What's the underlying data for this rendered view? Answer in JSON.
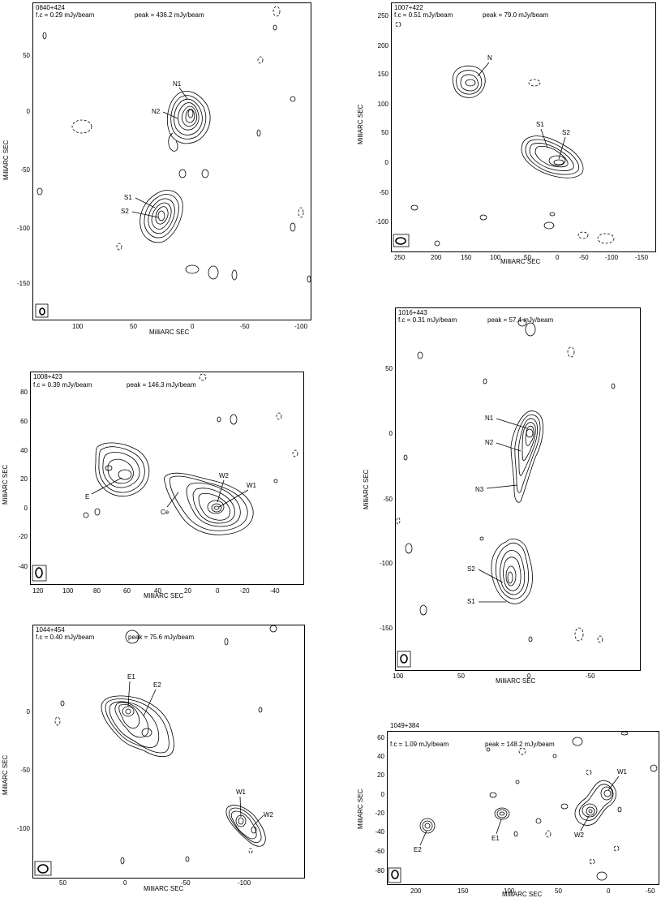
{
  "common": {
    "axis_label": "MilliARC SEC"
  },
  "panels": [
    {
      "id": "0840+424",
      "source": "0840+424",
      "fc": "f.c = 0.29 mJy/beam",
      "peak": "peak = 436.2 mJy/beam",
      "xticks": [
        "100",
        "50",
        "0",
        "-50",
        "-100"
      ],
      "yticks": [
        "50",
        "0",
        "-50",
        "-100",
        "-150"
      ],
      "components": [
        "N1",
        "N2",
        "S1",
        "S2"
      ]
    },
    {
      "id": "1007+422",
      "source": "1007+422",
      "fc": "f.c = 0.51 mJy/beam",
      "peak": "peak = 79.0 mJy/beam",
      "xticks": [
        "250",
        "200",
        "150",
        "100",
        "50",
        "0",
        "-50",
        "-100",
        "-150"
      ],
      "yticks": [
        "250",
        "200",
        "150",
        "100",
        "50",
        "0",
        "-50",
        "-100"
      ],
      "components": [
        "N",
        "S1",
        "S2"
      ]
    },
    {
      "id": "1008+423",
      "source": "1008+423",
      "fc": "f.c = 0.39 mJy/beam",
      "peak": "peak = 146.3 mJy/beam",
      "xticks": [
        "120",
        "100",
        "80",
        "60",
        "40",
        "20",
        "0",
        "-20",
        "-40"
      ],
      "yticks": [
        "80",
        "60",
        "40",
        "20",
        "0",
        "-20",
        "-40"
      ],
      "components": [
        "E",
        "Ce",
        "W2",
        "W1"
      ]
    },
    {
      "id": "1016+443",
      "source": "1016+443",
      "fc": "f.c = 0.31 mJy/beam",
      "peak": "peak = 57.4 mJy/beam",
      "xticks": [
        "100",
        "50",
        "0",
        "-50"
      ],
      "yticks": [
        "50",
        "0",
        "-50",
        "-100",
        "-150"
      ],
      "components": [
        "N1",
        "N2",
        "N3",
        "S2",
        "S1"
      ]
    },
    {
      "id": "1044+454",
      "source": "1044+454",
      "fc": "f.c = 0.40 mJy/beam",
      "peak": "peak = 75.6 mJy/beam",
      "xticks": [
        "50",
        "0",
        "-50",
        "-100"
      ],
      "yticks": [
        "0",
        "-50",
        "-100"
      ],
      "components": [
        "E1",
        "E2",
        "W1",
        "W2"
      ]
    },
    {
      "id": "1049+384",
      "source": "1049+384",
      "fc": "f.c = 1.09 mJy/beam",
      "peak": "peak = 148.2 mJy/beam",
      "xticks": [
        "200",
        "150",
        "100",
        "50",
        "0",
        "-50"
      ],
      "yticks": [
        "60",
        "40",
        "20",
        "0",
        "-20",
        "-40",
        "-60",
        "-80"
      ],
      "components": [
        "W1",
        "W2",
        "E1",
        "E2"
      ]
    }
  ]
}
